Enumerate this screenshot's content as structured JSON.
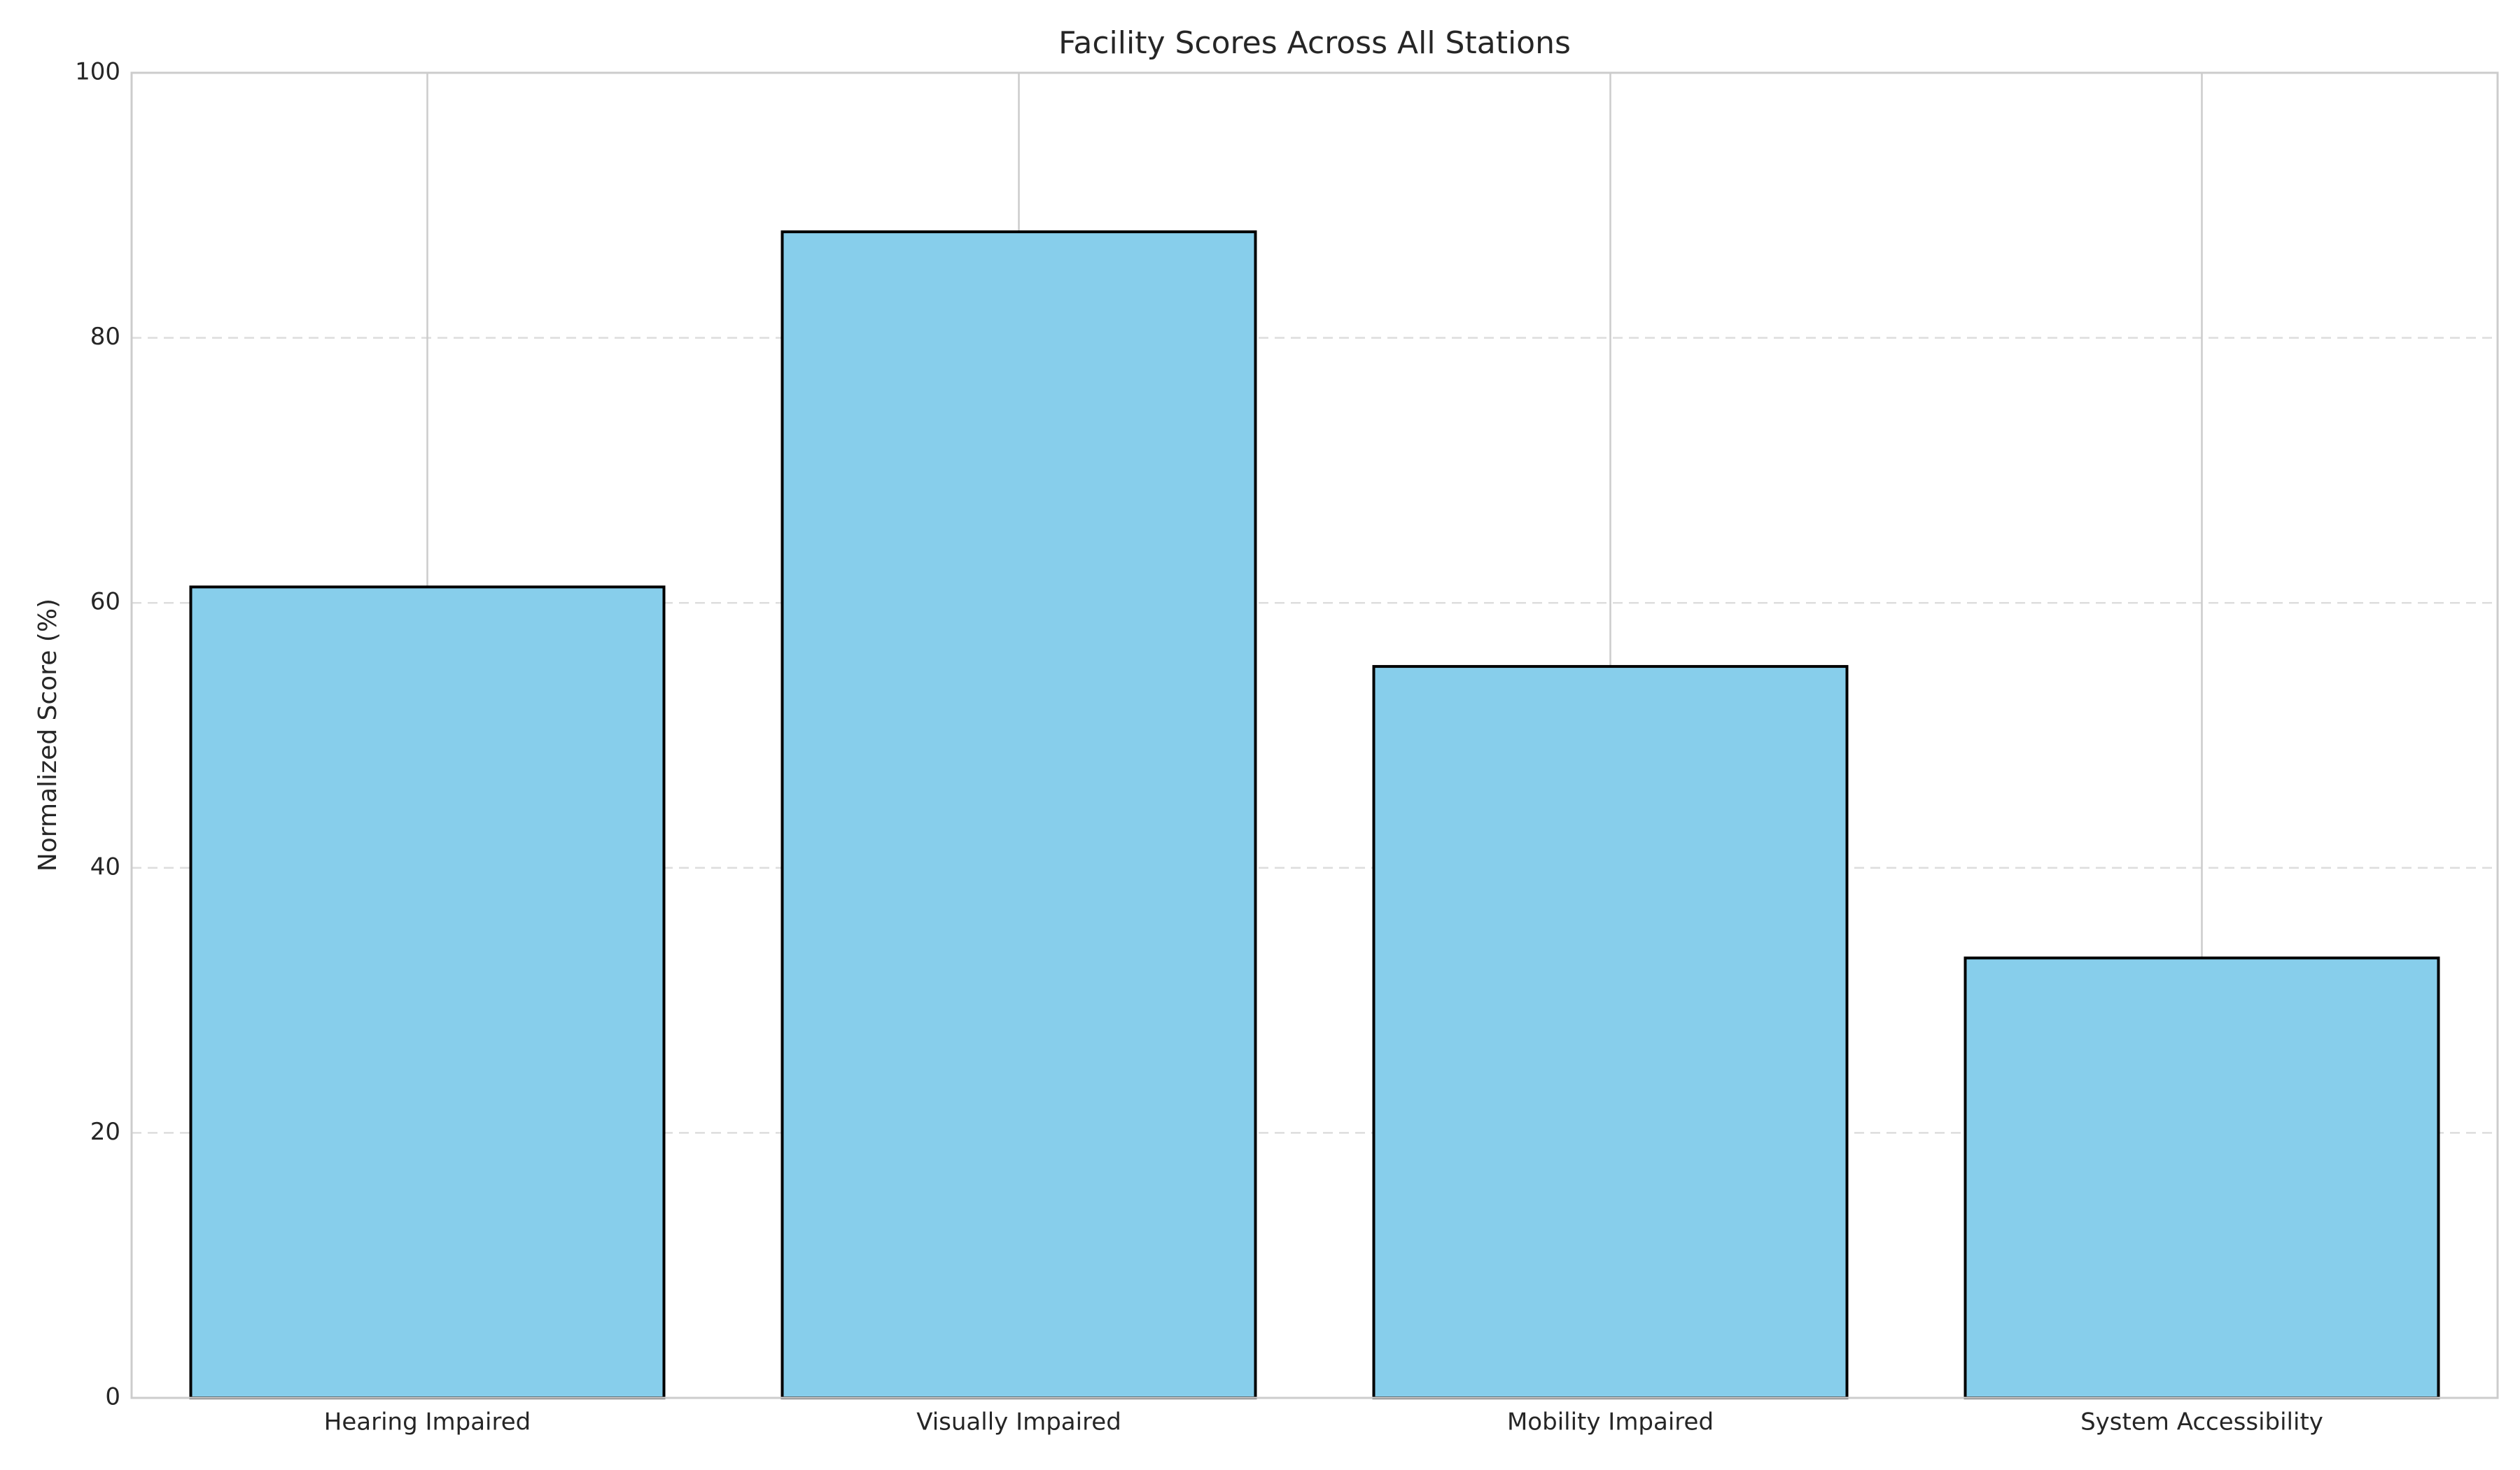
{
  "chart_data": {
    "type": "bar",
    "title": "Facility Scores Across All Stations",
    "xlabel": "",
    "ylabel": "Normalized Score (%)",
    "categories": [
      "Hearing Impaired",
      "Visually Impaired",
      "Mobility Impaired",
      "System Accessibility"
    ],
    "values": [
      61.2,
      88.0,
      55.2,
      33.2
    ],
    "ylim": [
      0,
      100
    ],
    "yticks": [
      0,
      20,
      40,
      60,
      80,
      100
    ],
    "ytick_labels": [
      "0",
      "20",
      "40",
      "60",
      "80",
      "100"
    ],
    "grid": true,
    "bar_color": "#87CEEB",
    "bar_edge_color": "#000000"
  }
}
